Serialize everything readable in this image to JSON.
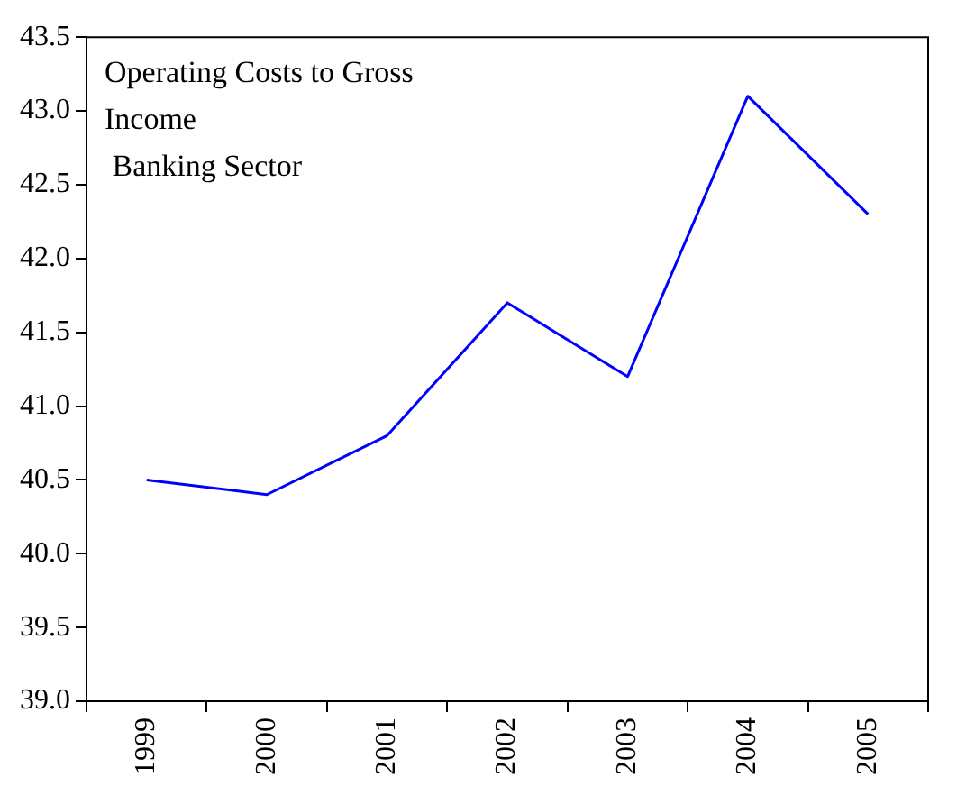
{
  "chart_data": {
    "type": "line",
    "title": "Operating Costs to Gross Income",
    "subtitle": "Banking Sector",
    "categories": [
      "1999",
      "2000",
      "2001",
      "2002",
      "2003",
      "2004",
      "2005"
    ],
    "series": [
      {
        "color": "#0000ff",
        "values": [
          40.5,
          40.4,
          40.8,
          41.7,
          41.2,
          43.1,
          42.3
        ]
      }
    ],
    "ylim": [
      39.0,
      43.5
    ],
    "yticks": [
      {
        "value": 39,
        "label": "39.0"
      },
      {
        "value": 39.5,
        "label": "39.5"
      },
      {
        "value": 40,
        "label": "40.0"
      },
      {
        "value": 40.5,
        "label": "40.5"
      },
      {
        "value": 41,
        "label": "41.0"
      },
      {
        "value": 41.5,
        "label": "41.5"
      },
      {
        "value": 42,
        "label": "42.0"
      },
      {
        "value": 42.5,
        "label": "42.5"
      },
      {
        "value": 43,
        "label": "43.0"
      },
      {
        "value": 43.5,
        "label": "43.5"
      }
    ],
    "grid": false,
    "legend": false,
    "marker": "none",
    "line_style": "solid"
  }
}
